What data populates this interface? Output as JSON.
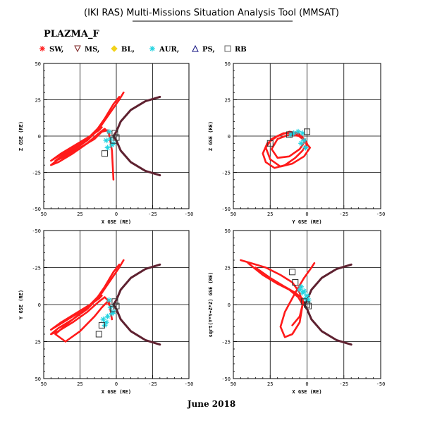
{
  "title": "(IKI RAS) Multi-Missions Situation Analysis Tool (MMSAT)",
  "instrument": "PLAZMA_F",
  "date_label": "June 2018",
  "legend": [
    {
      "label": "SW,",
      "symbol": "star",
      "color": "#ff2020"
    },
    {
      "label": "MS,",
      "symbol": "triangle-down",
      "color": "#7a1f1f"
    },
    {
      "label": "BL,",
      "symbol": "diamond",
      "color": "#f2d21a"
    },
    {
      "label": "AUR,",
      "symbol": "asterisk",
      "color": "#22d3e0"
    },
    {
      "label": "PS,",
      "symbol": "triangle-up",
      "color": "#101080"
    },
    {
      "label": "RB",
      "symbol": "square",
      "color": "#666666"
    }
  ],
  "colors": {
    "orbit": "#ff1a1a",
    "boundary": "#5e2130",
    "aur": "#22d3e0",
    "ps": "#333333",
    "bl": "#f2d21a",
    "grid": "#000000"
  },
  "chart_data": [
    {
      "type": "line",
      "panel": "X-Z",
      "xlabel": "X GSE (RE)",
      "ylabel": "Z GSE (RE)",
      "xlim": [
        50,
        -50
      ],
      "ylim": [
        -50,
        50
      ],
      "xticks": [
        "50",
        "25",
        "0",
        "-25",
        "-50"
      ],
      "yticks": [
        "50",
        "25",
        "0",
        "-25",
        "-50"
      ],
      "boundary": {
        "x": [
          -30,
          -20,
          -10,
          -3,
          0,
          2,
          0,
          -3,
          -10,
          -20,
          -30
        ],
        "y": [
          27,
          24,
          18,
          10,
          3,
          0,
          -3,
          -10,
          -18,
          -24,
          -27
        ]
      },
      "orbits": [
        {
          "x": [
            -5,
            -2,
            5,
            12,
            20,
            30,
            40,
            45,
            40,
            30,
            20,
            12,
            8,
            5,
            3,
            2
          ],
          "y": [
            30,
            25,
            15,
            5,
            -3,
            -10,
            -16,
            -20,
            -18,
            -12,
            -5,
            2,
            5,
            2,
            -10,
            -30
          ]
        },
        {
          "x": [
            -2,
            2,
            8,
            15,
            25,
            35,
            42,
            35,
            25,
            15,
            10,
            6,
            4
          ],
          "y": [
            27,
            22,
            12,
            2,
            -6,
            -12,
            -17,
            -14,
            -8,
            -2,
            3,
            4,
            -2
          ]
        },
        {
          "x": [
            10,
            14,
            20,
            30,
            40,
            45,
            38,
            28,
            18,
            12,
            10
          ],
          "y": [
            8,
            4,
            -2,
            -8,
            -14,
            -17,
            -12,
            -6,
            0,
            4,
            6
          ]
        }
      ],
      "markers": {
        "aur": {
          "x": [
            5,
            4,
            3,
            6,
            2,
            7
          ],
          "y": [
            3,
            -2,
            -6,
            -8,
            -5,
            -3
          ]
        },
        "ps": {
          "x": [
            1,
            0,
            2,
            8
          ],
          "y": [
            2,
            -1,
            -3,
            -12
          ]
        }
      }
    },
    {
      "type": "line",
      "panel": "Y-Z",
      "xlabel": "Y GSE (RE)",
      "ylabel": "Z GSE (RE)",
      "xlim": [
        50,
        -50
      ],
      "ylim": [
        -50,
        50
      ],
      "xticks": [
        "50",
        "25",
        "0",
        "-25",
        "-50"
      ],
      "yticks": [
        "50",
        "25",
        "0",
        "-25",
        "-50"
      ],
      "orbits": [
        {
          "x": [
            0,
            3,
            8,
            15,
            22,
            28,
            30,
            27,
            20,
            12,
            6,
            2,
            0
          ],
          "y": [
            -5,
            -10,
            -15,
            -20,
            -22,
            -18,
            -12,
            -5,
            0,
            3,
            2,
            -2,
            -5
          ]
        },
        {
          "x": [
            -2,
            2,
            10,
            18,
            25,
            28,
            24,
            16,
            8,
            3,
            -2
          ],
          "y": [
            -8,
            -14,
            -19,
            -21,
            -16,
            -8,
            -2,
            2,
            2,
            -2,
            -8
          ]
        },
        {
          "x": [
            1,
            5,
            12,
            20,
            24,
            20,
            12,
            5,
            1
          ],
          "y": [
            -3,
            -9,
            -14,
            -15,
            -9,
            -2,
            1,
            0,
            -3
          ]
        }
      ],
      "markers": {
        "aur": {
          "x": [
            3,
            6,
            9,
            11,
            4,
            1,
            2
          ],
          "y": [
            2,
            3,
            2,
            1,
            -5,
            -8,
            -3
          ]
        },
        "ps": {
          "x": [
            0,
            12,
            25
          ],
          "y": [
            3,
            1,
            -5
          ]
        }
      }
    },
    {
      "type": "line",
      "panel": "X-Y",
      "xlabel": "X GSE (RE)",
      "ylabel": "Y GSE (RE)",
      "xlim": [
        50,
        -50
      ],
      "ylim": [
        50,
        -50
      ],
      "xticks": [
        "50",
        "25",
        "0",
        "-25",
        "-50"
      ],
      "yticks": [
        "-50",
        "-25",
        "0",
        "25",
        "50"
      ],
      "boundary": {
        "x": [
          -30,
          -20,
          -10,
          -3,
          0,
          2,
          0,
          -3,
          -10,
          -20,
          -30
        ],
        "y": [
          -27,
          -24,
          -18,
          -10,
          -3,
          0,
          3,
          10,
          18,
          24,
          27
        ]
      },
      "orbits": [
        {
          "x": [
            -5,
            -2,
            5,
            12,
            20,
            30,
            40,
            45,
            40,
            30,
            20,
            12,
            8,
            5,
            3
          ],
          "y": [
            -30,
            -25,
            -15,
            -5,
            3,
            10,
            16,
            20,
            18,
            12,
            5,
            -2,
            -5,
            -2,
            10
          ]
        },
        {
          "x": [
            -2,
            2,
            8,
            15,
            25,
            35,
            42,
            35,
            25,
            15,
            10,
            6,
            4
          ],
          "y": [
            -27,
            -22,
            -12,
            -2,
            6,
            14,
            20,
            25,
            18,
            8,
            2,
            -2,
            2
          ]
        },
        {
          "x": [
            10,
            14,
            20,
            30,
            40,
            45,
            38,
            28,
            18,
            12,
            10
          ],
          "y": [
            -8,
            -4,
            2,
            8,
            14,
            17,
            12,
            6,
            0,
            -4,
            -6
          ]
        }
      ],
      "markers": {
        "aur": {
          "x": [
            5,
            4,
            3,
            6,
            2,
            7,
            8,
            9
          ],
          "y": [
            -3,
            2,
            6,
            8,
            5,
            12,
            14,
            10
          ]
        },
        "ps": {
          "x": [
            1,
            0,
            2,
            10,
            12
          ],
          "y": [
            -2,
            1,
            3,
            14,
            20
          ]
        }
      }
    },
    {
      "type": "line",
      "panel": "X-sqrt(Y^2+Z^2)",
      "xlabel": "X GSE (RE)",
      "ylabel": "sqrt(Y*Y+Z*Z) GSE (RE)",
      "xlim": [
        50,
        -50
      ],
      "ylim": [
        -50,
        50
      ],
      "xticks": [
        "50",
        "25",
        "0",
        "-25",
        "-50"
      ],
      "yticks": [
        "50",
        "25",
        "0",
        "-25",
        "-50"
      ],
      "boundary": {
        "x": [
          -30,
          -20,
          -10,
          -3,
          0,
          2,
          0,
          -3,
          -10,
          -20,
          -30
        ],
        "y": [
          27,
          24,
          18,
          10,
          3,
          0,
          -3,
          -10,
          -18,
          -24,
          -27
        ]
      },
      "orbits": [
        {
          "x": [
            45,
            38,
            28,
            18,
            10,
            5,
            3,
            5,
            10,
            15,
            18,
            15,
            8,
            2,
            -3,
            -5
          ],
          "y": [
            30,
            28,
            25,
            20,
            15,
            8,
            0,
            -12,
            -20,
            -22,
            -15,
            -5,
            8,
            18,
            25,
            28
          ]
        },
        {
          "x": [
            40,
            30,
            20,
            12,
            6,
            3,
            5,
            10
          ],
          "y": [
            28,
            20,
            14,
            10,
            5,
            0,
            -8,
            -14
          ]
        },
        {
          "x": [
            35,
            25,
            15,
            8,
            3,
            2
          ],
          "y": [
            25,
            18,
            12,
            8,
            4,
            0
          ]
        }
      ],
      "markers": {
        "aur": {
          "x": [
            4,
            2,
            0,
            3,
            5,
            1,
            -1
          ],
          "y": [
            12,
            9,
            6,
            8,
            10,
            4,
            3
          ]
        },
        "ps": {
          "x": [
            2,
            0,
            -1,
            8,
            10
          ],
          "y": [
            2,
            0,
            -1,
            15,
            22
          ]
        }
      }
    }
  ]
}
